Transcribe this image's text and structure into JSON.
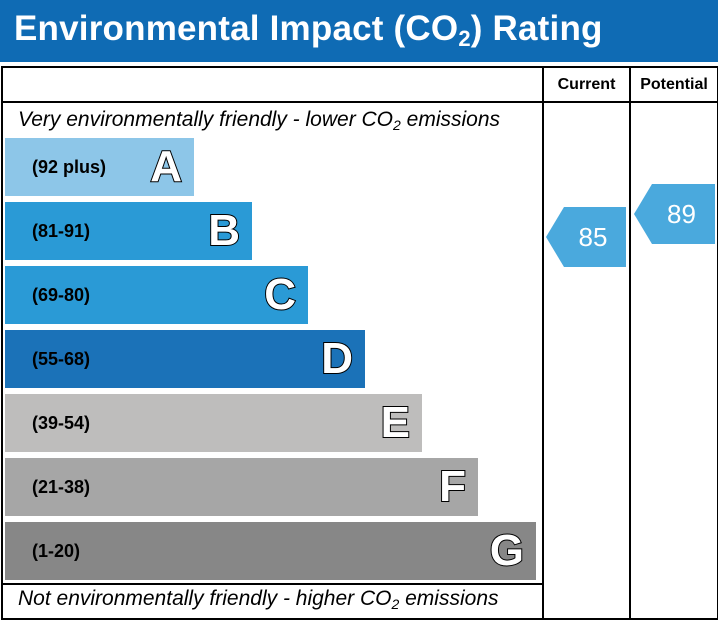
{
  "header": {
    "title_pre": "Environmental Impact (CO",
    "title_sub": "2",
    "title_post": ") Rating",
    "background": "#0f6bb4"
  },
  "columns": {
    "current": "Current",
    "potential": "Potential"
  },
  "notes": {
    "top_pre": "Very environmentally friendly - lower CO",
    "top_sub": "2",
    "top_post": " emissions",
    "bottom_pre": "Not environmentally friendly - higher CO",
    "bottom_sub": "2",
    "bottom_post": " emissions"
  },
  "bands": [
    {
      "letter": "A",
      "range": "(92 plus)",
      "color": "#8dc6e8"
    },
    {
      "letter": "B",
      "range": "(81-91)",
      "color": "#2a9ad6"
    },
    {
      "letter": "C",
      "range": "(69-80)",
      "color": "#2a9ad6"
    },
    {
      "letter": "D",
      "range": "(55-68)",
      "color": "#1b72b8"
    },
    {
      "letter": "E",
      "range": "(39-54)",
      "color": "#bebdbc"
    },
    {
      "letter": "F",
      "range": "(21-38)",
      "color": "#a6a6a6"
    },
    {
      "letter": "G",
      "range": "(1-20)",
      "color": "#878787"
    }
  ],
  "ratings": {
    "current": {
      "value": "85",
      "color": "#4aa9dd"
    },
    "potential": {
      "value": "89",
      "color": "#4aa9dd"
    }
  }
}
